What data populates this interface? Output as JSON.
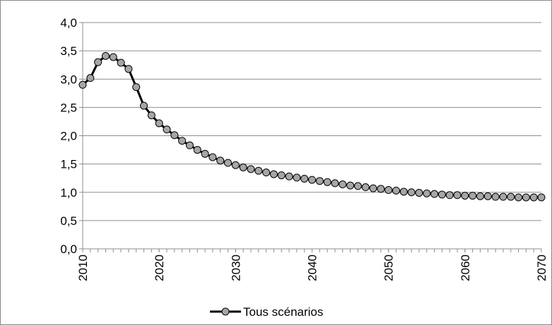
{
  "chart_data": {
    "type": "line",
    "x": [
      2010,
      2011,
      2012,
      2013,
      2014,
      2015,
      2016,
      2017,
      2018,
      2019,
      2020,
      2021,
      2022,
      2023,
      2024,
      2025,
      2026,
      2027,
      2028,
      2029,
      2030,
      2031,
      2032,
      2033,
      2034,
      2035,
      2036,
      2037,
      2038,
      2039,
      2040,
      2041,
      2042,
      2043,
      2044,
      2045,
      2046,
      2047,
      2048,
      2049,
      2050,
      2051,
      2052,
      2053,
      2054,
      2055,
      2056,
      2057,
      2058,
      2059,
      2060,
      2061,
      2062,
      2063,
      2064,
      2065,
      2066,
      2067,
      2068,
      2069,
      2070
    ],
    "series": [
      {
        "name": "Tous scénarios",
        "color": "#000000",
        "marker_color": "#a6a6a6",
        "values": [
          2.9,
          3.02,
          3.3,
          3.41,
          3.39,
          3.29,
          3.18,
          2.86,
          2.53,
          2.36,
          2.22,
          2.11,
          2.01,
          1.91,
          1.83,
          1.75,
          1.68,
          1.62,
          1.56,
          1.52,
          1.48,
          1.44,
          1.41,
          1.38,
          1.35,
          1.32,
          1.3,
          1.28,
          1.26,
          1.24,
          1.22,
          1.2,
          1.18,
          1.16,
          1.14,
          1.12,
          1.11,
          1.09,
          1.07,
          1.06,
          1.04,
          1.03,
          1.01,
          1.0,
          0.99,
          0.98,
          0.97,
          0.96,
          0.95,
          0.95,
          0.94,
          0.94,
          0.93,
          0.93,
          0.92,
          0.92,
          0.92,
          0.91,
          0.91,
          0.91,
          0.91
        ]
      }
    ],
    "xlim": [
      2010,
      2070
    ],
    "xticks": [
      2010,
      2020,
      2030,
      2040,
      2050,
      2060,
      2070
    ],
    "ylim": [
      0,
      4
    ],
    "yticks": [
      {
        "value": 0,
        "label": "0,0"
      },
      {
        "value": 0.5,
        "label": "0,5"
      },
      {
        "value": 1,
        "label": "1,0"
      },
      {
        "value": 1.5,
        "label": "1,5"
      },
      {
        "value": 2,
        "label": "2,0"
      },
      {
        "value": 2.5,
        "label": "2,5"
      },
      {
        "value": 3,
        "label": "3,0"
      },
      {
        "value": 3.5,
        "label": "3,5"
      },
      {
        "value": 4,
        "label": "4,0"
      }
    ],
    "grid": true,
    "legend": "bottom"
  }
}
